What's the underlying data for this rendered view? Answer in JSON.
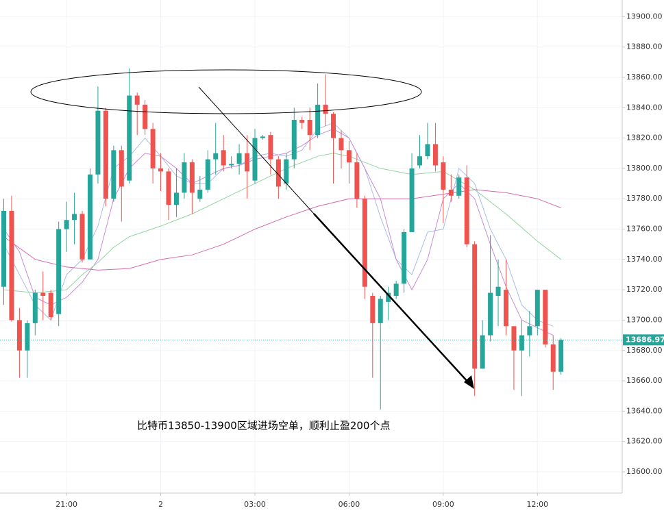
{
  "chart_data": {
    "type": "candlestick",
    "annotation": "比特币13850-13900区域进场空单，顺利止盈200个点",
    "last_price": 13686.97,
    "up_color": "#26a69a",
    "down_color": "#ef5350",
    "xlim": [
      18.88,
      38.7
    ],
    "ylim": [
      13586,
      13911
    ],
    "grid": true,
    "xticks": [
      {
        "value": 21,
        "label": "21:00"
      },
      {
        "value": 24,
        "label": "2"
      },
      {
        "value": 27,
        "label": "03:00"
      },
      {
        "value": 30,
        "label": "06:00"
      },
      {
        "value": 33,
        "label": "09:00"
      },
      {
        "value": 36,
        "label": "12:00"
      }
    ],
    "yticks": [
      {
        "value": 13600,
        "label": "13600.00"
      },
      {
        "value": 13620,
        "label": "13620.00"
      },
      {
        "value": 13640,
        "label": "13640.00"
      },
      {
        "value": 13660,
        "label": "13660.00"
      },
      {
        "value": 13680,
        "label": "13680.00"
      },
      {
        "value": 13700,
        "label": "13700.00"
      },
      {
        "value": 13720,
        "label": "13720.00"
      },
      {
        "value": 13740,
        "label": "13740.00"
      },
      {
        "value": 13760,
        "label": "13760.00"
      },
      {
        "value": 13780,
        "label": "13780.00"
      },
      {
        "value": 13800,
        "label": "13800.00"
      },
      {
        "value": 13820,
        "label": "13820.00"
      },
      {
        "value": 13840,
        "label": "13840.00"
      },
      {
        "value": 13860,
        "label": "13860.00"
      },
      {
        "value": 13880,
        "label": "13880.00"
      },
      {
        "value": 13900,
        "label": "13900.00"
      }
    ],
    "x": [
      19,
      19.25,
      19.5,
      19.75,
      20,
      20.25,
      20.5,
      20.75,
      21,
      21.25,
      21.5,
      21.75,
      22,
      22.25,
      22.5,
      22.75,
      23,
      23.25,
      23.5,
      23.75,
      24,
      24.25,
      24.5,
      24.75,
      25,
      25.25,
      25.5,
      25.75,
      26,
      26.25,
      26.5,
      26.75,
      27,
      27.25,
      27.5,
      27.75,
      28,
      28.25,
      28.5,
      28.75,
      29,
      29.25,
      29.5,
      29.75,
      30,
      30.25,
      30.5,
      30.75,
      31,
      31.25,
      31.5,
      31.75,
      32,
      32.25,
      32.5,
      32.75,
      33,
      33.25,
      33.5,
      33.75,
      34,
      34.25,
      34.5,
      34.75,
      35,
      35.25,
      35.5,
      35.75,
      36,
      36.25,
      36.5,
      36.75
    ],
    "open": [
      13722,
      13772,
      13700,
      13680,
      13698,
      13718,
      13718,
      13704,
      13760,
      13766,
      13770,
      13740,
      13796,
      13838,
      13780,
      13812,
      13792,
      13848,
      13842,
      13826,
      13800,
      13798,
      13776,
      13784,
      13804,
      13780,
      13786,
      13806,
      13812,
      13802,
      13803,
      13810,
      13792,
      13820,
      13822,
      13806,
      13790,
      13806,
      13832,
      13832,
      13822,
      13842,
      13836,
      13820,
      13812,
      13804,
      13780,
      13716,
      13698,
      13712,
      13716,
      13724,
      13758,
      13802,
      13808,
      13816,
      13804,
      13786,
      13782,
      13794,
      13750,
      13668,
      13690,
      13716,
      13720,
      13696,
      13680,
      13690,
      13696,
      13720,
      13684,
      13666
    ],
    "high": [
      13780,
      13782,
      13708,
      13700,
      13720,
      13732,
      13720,
      13765,
      13778,
      13784,
      13772,
      13800,
      13854,
      13840,
      13815,
      13815,
      13866,
      13850,
      13845,
      13830,
      13810,
      13800,
      13800,
      13810,
      13806,
      13795,
      13812,
      13830,
      13822,
      13808,
      13816,
      13822,
      13826,
      13822,
      13824,
      13808,
      13810,
      13840,
      13834,
      13840,
      13856,
      13862,
      13837,
      13825,
      13818,
      13810,
      13782,
      13718,
      13716,
      13722,
      13726,
      13760,
      13810,
      13822,
      13830,
      13830,
      13808,
      13796,
      13796,
      13802,
      13752,
      13700,
      13756,
      13740,
      13740,
      13696,
      13700,
      13706,
      13720,
      13720,
      13690,
      13688
    ],
    "low": [
      13710,
      13699,
      13662,
      13662,
      13690,
      13700,
      13700,
      13696,
      13745,
      13750,
      13738,
      13740,
      13790,
      13775,
      13778,
      13765,
      13790,
      13822,
      13822,
      13790,
      13785,
      13766,
      13768,
      13780,
      13770,
      13778,
      13784,
      13796,
      13798,
      13800,
      13796,
      13780,
      13790,
      13819,
      13796,
      13780,
      13786,
      13800,
      13826,
      13812,
      13820,
      13828,
      13790,
      13800,
      13790,
      13774,
      13714,
      13662,
      13641,
      13700,
      13714,
      13718,
      13758,
      13800,
      13806,
      13798,
      13764,
      13778,
      13780,
      13748,
      13650,
      13668,
      13686,
      13696,
      13690,
      13654,
      13650,
      13676,
      13690,
      13682,
      13654,
      13664
    ],
    "close": [
      13772,
      13700,
      13680,
      13698,
      13718,
      13716,
      13702,
      13760,
      13766,
      13770,
      13740,
      13796,
      13838,
      13780,
      13812,
      13788,
      13848,
      13842,
      13826,
      13800,
      13798,
      13776,
      13784,
      13804,
      13784,
      13786,
      13806,
      13810,
      13802,
      13803,
      13810,
      13798,
      13820,
      13821,
      13806,
      13788,
      13806,
      13832,
      13830,
      13822,
      13842,
      13836,
      13820,
      13812,
      13804,
      13780,
      13722,
      13698,
      13714,
      13718,
      13724,
      13758,
      13800,
      13808,
      13816,
      13802,
      13786,
      13782,
      13794,
      13750,
      13668,
      13690,
      13718,
      13722,
      13696,
      13680,
      13690,
      13696,
      13720,
      13684,
      13666,
      13686.97
    ],
    "lines": [
      {
        "color": "#a9bce6",
        "x": [
          19,
          19.5,
          20,
          20.5,
          21,
          21.5,
          22,
          22.5,
          23,
          23.5,
          24,
          24.5,
          25,
          25.5,
          26,
          26.5,
          27,
          27.5,
          28,
          28.5,
          29,
          29.5,
          30,
          30.5,
          31,
          31.5,
          32,
          32.5,
          33,
          33.5,
          34,
          34.5,
          35,
          35.5,
          36,
          36.5
        ],
        "values": [
          13750,
          13730,
          13710,
          13700,
          13730,
          13740,
          13762,
          13800,
          13808,
          13820,
          13808,
          13795,
          13790,
          13790,
          13800,
          13802,
          13808,
          13810,
          13808,
          13812,
          13826,
          13830,
          13820,
          13800,
          13768,
          13740,
          13730,
          13758,
          13760,
          13800,
          13790,
          13760,
          13740,
          13710,
          13700,
          13696
        ]
      },
      {
        "color": "#c88bd6",
        "x": [
          19,
          19.5,
          20,
          20.5,
          21,
          21.5,
          22,
          22.5,
          23,
          23.5,
          24,
          24.5,
          25,
          25.5,
          26,
          26.5,
          27,
          27.5,
          28,
          28.5,
          29,
          29.5,
          30,
          30.5,
          31,
          31.5,
          32,
          32.5,
          33,
          33.5,
          34,
          34.5,
          35,
          35.5,
          36,
          36.5
        ],
        "values": [
          13760,
          13745,
          13715,
          13710,
          13715,
          13725,
          13740,
          13780,
          13800,
          13810,
          13808,
          13800,
          13790,
          13795,
          13800,
          13802,
          13806,
          13808,
          13810,
          13815,
          13822,
          13826,
          13820,
          13800,
          13780,
          13740,
          13720,
          13740,
          13780,
          13790,
          13780,
          13750,
          13722,
          13700,
          13695,
          13690
        ]
      },
      {
        "color": "#92d4a0",
        "x": [
          19,
          20,
          21,
          21.5,
          22,
          22.5,
          23,
          24,
          25,
          26,
          27,
          28,
          29,
          29.5,
          30,
          31,
          32,
          33,
          34,
          35,
          36,
          36.75
        ],
        "values": [
          13720,
          13718,
          13720,
          13730,
          13738,
          13748,
          13755,
          13762,
          13770,
          13780,
          13790,
          13800,
          13808,
          13810,
          13808,
          13800,
          13796,
          13798,
          13786,
          13770,
          13752,
          13740
        ]
      },
      {
        "color": "#d56aad",
        "x": [
          19,
          20,
          21,
          22,
          23,
          24,
          25,
          26,
          27,
          28,
          29,
          30,
          31,
          32,
          33,
          34,
          35,
          36,
          36.75
        ],
        "values": [
          13755,
          13740,
          13735,
          13733,
          13734,
          13740,
          13743,
          13750,
          13760,
          13768,
          13775,
          13780,
          13780,
          13780,
          13783,
          13786,
          13784,
          13780,
          13774
        ]
      }
    ]
  }
}
